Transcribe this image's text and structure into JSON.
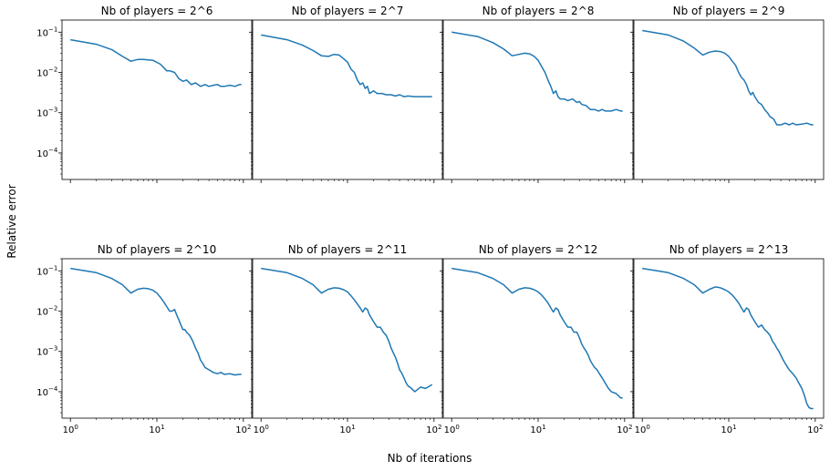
{
  "figure": {
    "ylabel": "Relative error",
    "xlabel": "Nb of iterations"
  },
  "chart_data": [
    {
      "type": "line",
      "title": "Nb of players = 2^6",
      "xscale": "log",
      "yscale": "log",
      "xlim": [
        0.8,
        125
      ],
      "ylim": [
        2.2e-05,
        0.2
      ],
      "xticks": [
        {
          "value": 1,
          "label": "10",
          "exp": "0"
        },
        {
          "value": 10,
          "label": "10",
          "exp": "1"
        },
        {
          "value": 100,
          "label": "10",
          "exp": "2"
        }
      ],
      "yticks": [
        {
          "value": 0.1,
          "label": "10",
          "exp": "−1"
        },
        {
          "value": 0.01,
          "label": "10",
          "exp": "−2"
        },
        {
          "value": 0.001,
          "label": "10",
          "exp": "−3"
        },
        {
          "value": 0.0001,
          "label": "10",
          "exp": "−4"
        }
      ],
      "series": [
        {
          "name": "relative error",
          "color": "#1f77b4",
          "x": [
            1,
            2,
            3,
            4,
            5,
            6,
            7,
            9,
            11,
            13,
            14,
            16,
            18,
            20,
            22,
            25,
            28,
            32,
            36,
            40,
            45,
            50,
            55,
            60,
            70,
            80,
            90,
            95
          ],
          "y": [
            0.065,
            0.05,
            0.037,
            0.025,
            0.019,
            0.021,
            0.021,
            0.02,
            0.016,
            0.011,
            0.011,
            0.01,
            0.007,
            0.006,
            0.0065,
            0.005,
            0.0055,
            0.0045,
            0.005,
            0.0045,
            0.0048,
            0.005,
            0.0045,
            0.0045,
            0.0048,
            0.0045,
            0.005,
            0.005
          ]
        }
      ]
    },
    {
      "type": "line",
      "title": "Nb of players = 2^7",
      "xscale": "log",
      "yscale": "log",
      "xlim": [
        0.8,
        125
      ],
      "ylim": [
        2.2e-05,
        0.2
      ],
      "xticks": [
        {
          "value": 1,
          "label": "10",
          "exp": "0"
        },
        {
          "value": 10,
          "label": "10",
          "exp": "1"
        },
        {
          "value": 100,
          "label": "10",
          "exp": "2"
        }
      ],
      "yticks": [
        {
          "value": 0.1,
          "label": "10",
          "exp": "−1"
        },
        {
          "value": 0.01,
          "label": "10",
          "exp": "−2"
        },
        {
          "value": 0.001,
          "label": "10",
          "exp": "−3"
        },
        {
          "value": 0.0001,
          "label": "10",
          "exp": "−4"
        }
      ],
      "series": [
        {
          "name": "relative error",
          "color": "#1f77b4",
          "x": [
            1,
            2,
            3,
            4,
            5,
            6,
            7,
            8,
            9,
            10,
            11,
            12,
            13,
            14,
            15,
            16,
            17,
            18,
            20,
            22,
            25,
            28,
            32,
            36,
            40,
            45,
            50,
            60,
            70,
            80,
            95
          ],
          "y": [
            0.085,
            0.065,
            0.048,
            0.035,
            0.026,
            0.025,
            0.028,
            0.027,
            0.022,
            0.018,
            0.012,
            0.01,
            0.0065,
            0.005,
            0.0055,
            0.004,
            0.0045,
            0.003,
            0.0035,
            0.003,
            0.003,
            0.0028,
            0.0028,
            0.0026,
            0.0028,
            0.0025,
            0.0026,
            0.0025,
            0.0025,
            0.0025,
            0.0025
          ]
        }
      ]
    },
    {
      "type": "line",
      "title": "Nb of players = 2^8",
      "xscale": "log",
      "yscale": "log",
      "xlim": [
        0.8,
        125
      ],
      "ylim": [
        2.2e-05,
        0.2
      ],
      "xticks": [
        {
          "value": 1,
          "label": "10",
          "exp": "0"
        },
        {
          "value": 10,
          "label": "10",
          "exp": "1"
        },
        {
          "value": 100,
          "label": "10",
          "exp": "2"
        }
      ],
      "yticks": [
        {
          "value": 0.1,
          "label": "10",
          "exp": "−1"
        },
        {
          "value": 0.01,
          "label": "10",
          "exp": "−2"
        },
        {
          "value": 0.001,
          "label": "10",
          "exp": "−3"
        },
        {
          "value": 0.0001,
          "label": "10",
          "exp": "−4"
        }
      ],
      "series": [
        {
          "name": "relative error",
          "color": "#1f77b4",
          "x": [
            1,
            2,
            3,
            4,
            5,
            6,
            7,
            8,
            9,
            10,
            11,
            12,
            13,
            14,
            15,
            16,
            17,
            18,
            20,
            22,
            25,
            28,
            30,
            32,
            36,
            40,
            45,
            50,
            55,
            60,
            70,
            80,
            90,
            95
          ],
          "y": [
            0.1,
            0.078,
            0.055,
            0.038,
            0.026,
            0.028,
            0.03,
            0.029,
            0.025,
            0.02,
            0.014,
            0.01,
            0.0065,
            0.0045,
            0.003,
            0.0035,
            0.0025,
            0.0022,
            0.0022,
            0.002,
            0.0022,
            0.0018,
            0.0019,
            0.0016,
            0.0015,
            0.0012,
            0.0012,
            0.0011,
            0.0012,
            0.0011,
            0.0011,
            0.0012,
            0.0011,
            0.0011
          ]
        }
      ]
    },
    {
      "type": "line",
      "title": "Nb of players = 2^9",
      "xscale": "log",
      "yscale": "log",
      "xlim": [
        0.8,
        125
      ],
      "ylim": [
        2.2e-05,
        0.2
      ],
      "xticks": [
        {
          "value": 1,
          "label": "10",
          "exp": "0"
        },
        {
          "value": 10,
          "label": "10",
          "exp": "1"
        },
        {
          "value": 100,
          "label": "10",
          "exp": "2"
        }
      ],
      "yticks": [
        {
          "value": 0.1,
          "label": "10",
          "exp": "−1"
        },
        {
          "value": 0.01,
          "label": "10",
          "exp": "−2"
        },
        {
          "value": 0.001,
          "label": "10",
          "exp": "−3"
        },
        {
          "value": 0.0001,
          "label": "10",
          "exp": "−4"
        }
      ],
      "series": [
        {
          "name": "relative error",
          "color": "#1f77b4",
          "x": [
            1,
            2,
            3,
            4,
            5,
            6,
            7,
            8,
            9,
            10,
            11,
            12,
            13,
            14,
            15,
            16,
            17,
            18,
            19,
            20,
            22,
            24,
            26,
            28,
            30,
            33,
            36,
            40,
            45,
            50,
            55,
            60,
            70,
            80,
            90,
            95
          ],
          "y": [
            0.11,
            0.085,
            0.06,
            0.04,
            0.027,
            0.032,
            0.034,
            0.033,
            0.03,
            0.025,
            0.019,
            0.015,
            0.01,
            0.0075,
            0.0065,
            0.005,
            0.0035,
            0.0028,
            0.0032,
            0.0025,
            0.0018,
            0.0016,
            0.0012,
            0.001,
            0.0008,
            0.0007,
            0.0005,
            0.0005,
            0.00055,
            0.0005,
            0.00055,
            0.0005,
            0.00052,
            0.00055,
            0.0005,
            0.0005
          ]
        }
      ]
    },
    {
      "type": "line",
      "title": "Nb of players = 2^10",
      "xscale": "log",
      "yscale": "log",
      "xlim": [
        0.8,
        125
      ],
      "ylim": [
        2.2e-05,
        0.2
      ],
      "xticks": [
        {
          "value": 1,
          "label": "10",
          "exp": "0"
        },
        {
          "value": 10,
          "label": "10",
          "exp": "1"
        },
        {
          "value": 100,
          "label": "10",
          "exp": "2"
        }
      ],
      "yticks": [
        {
          "value": 0.1,
          "label": "10",
          "exp": "−1"
        },
        {
          "value": 0.01,
          "label": "10",
          "exp": "−2"
        },
        {
          "value": 0.001,
          "label": "10",
          "exp": "−3"
        },
        {
          "value": 0.0001,
          "label": "10",
          "exp": "−4"
        }
      ],
      "series": [
        {
          "name": "relative error",
          "color": "#1f77b4",
          "x": [
            1,
            2,
            3,
            4,
            5,
            6,
            7,
            8,
            9,
            10,
            11,
            12,
            13,
            14,
            15,
            16,
            17,
            18,
            19,
            20,
            21,
            22,
            24,
            26,
            28,
            30,
            32,
            34,
            36,
            40,
            45,
            50,
            55,
            60,
            70,
            80,
            90,
            95
          ],
          "y": [
            0.115,
            0.09,
            0.065,
            0.045,
            0.028,
            0.035,
            0.037,
            0.036,
            0.033,
            0.028,
            0.022,
            0.017,
            0.013,
            0.01,
            0.01,
            0.011,
            0.008,
            0.006,
            0.0045,
            0.0035,
            0.0035,
            0.003,
            0.0025,
            0.0018,
            0.0012,
            0.0009,
            0.0006,
            0.0005,
            0.0004,
            0.00035,
            0.0003,
            0.00028,
            0.0003,
            0.00027,
            0.00028,
            0.00026,
            0.00027,
            0.00027
          ]
        }
      ]
    },
    {
      "type": "line",
      "title": "Nb of players = 2^11",
      "xscale": "log",
      "yscale": "log",
      "xlim": [
        0.8,
        125
      ],
      "ylim": [
        2.2e-05,
        0.2
      ],
      "xticks": [
        {
          "value": 1,
          "label": "10",
          "exp": "0"
        },
        {
          "value": 10,
          "label": "10",
          "exp": "1"
        },
        {
          "value": 100,
          "label": "10",
          "exp": "2"
        }
      ],
      "yticks": [
        {
          "value": 0.1,
          "label": "10",
          "exp": "−1"
        },
        {
          "value": 0.01,
          "label": "10",
          "exp": "−2"
        },
        {
          "value": 0.001,
          "label": "10",
          "exp": "−3"
        },
        {
          "value": 0.0001,
          "label": "10",
          "exp": "−4"
        }
      ],
      "series": [
        {
          "name": "relative error",
          "color": "#1f77b4",
          "x": [
            1,
            2,
            3,
            4,
            5,
            6,
            7,
            8,
            9,
            10,
            11,
            12,
            13,
            14,
            15,
            16,
            17,
            18,
            20,
            22,
            24,
            26,
            28,
            30,
            32,
            34,
            36,
            38,
            40,
            42,
            45,
            48,
            50,
            55,
            60,
            70,
            80,
            90,
            95
          ],
          "y": [
            0.115,
            0.09,
            0.065,
            0.045,
            0.028,
            0.035,
            0.038,
            0.037,
            0.034,
            0.03,
            0.024,
            0.019,
            0.015,
            0.012,
            0.0095,
            0.012,
            0.011,
            0.008,
            0.0055,
            0.004,
            0.004,
            0.003,
            0.0025,
            0.0018,
            0.0012,
            0.0009,
            0.0007,
            0.0005,
            0.00035,
            0.0003,
            0.00022,
            0.00016,
            0.00014,
            0.00012,
            0.0001,
            0.00013,
            0.00012,
            0.00014,
            0.00015
          ]
        }
      ]
    },
    {
      "type": "line",
      "title": "Nb of players = 2^12",
      "xscale": "log",
      "yscale": "log",
      "xlim": [
        0.8,
        125
      ],
      "ylim": [
        2.2e-05,
        0.2
      ],
      "xticks": [
        {
          "value": 1,
          "label": "10",
          "exp": "0"
        },
        {
          "value": 10,
          "label": "10",
          "exp": "1"
        },
        {
          "value": 100,
          "label": "10",
          "exp": "2"
        }
      ],
      "yticks": [
        {
          "value": 0.1,
          "label": "10",
          "exp": "−1"
        },
        {
          "value": 0.01,
          "label": "10",
          "exp": "−2"
        },
        {
          "value": 0.001,
          "label": "10",
          "exp": "−3"
        },
        {
          "value": 0.0001,
          "label": "10",
          "exp": "−4"
        }
      ],
      "series": [
        {
          "name": "relative error",
          "color": "#1f77b4",
          "x": [
            1,
            2,
            3,
            4,
            5,
            6,
            7,
            8,
            9,
            10,
            11,
            12,
            13,
            14,
            15,
            16,
            17,
            18,
            20,
            22,
            24,
            26,
            28,
            30,
            32,
            34,
            36,
            38,
            40,
            42,
            45,
            48,
            50,
            55,
            60,
            65,
            70,
            80,
            90,
            95
          ],
          "y": [
            0.115,
            0.09,
            0.065,
            0.045,
            0.028,
            0.035,
            0.038,
            0.037,
            0.034,
            0.03,
            0.025,
            0.02,
            0.016,
            0.012,
            0.0095,
            0.012,
            0.011,
            0.008,
            0.0055,
            0.004,
            0.004,
            0.003,
            0.003,
            0.0022,
            0.0015,
            0.0012,
            0.001,
            0.0008,
            0.0006,
            0.0005,
            0.0004,
            0.00035,
            0.0003,
            0.00022,
            0.00016,
            0.00012,
            0.0001,
            9e-05,
            7e-05,
            7e-05
          ]
        }
      ]
    },
    {
      "type": "line",
      "title": "Nb of players = 2^13",
      "xscale": "log",
      "yscale": "log",
      "xlim": [
        0.8,
        125
      ],
      "ylim": [
        2.2e-05,
        0.2
      ],
      "xticks": [
        {
          "value": 1,
          "label": "10",
          "exp": "0"
        },
        {
          "value": 10,
          "label": "10",
          "exp": "1"
        },
        {
          "value": 100,
          "label": "10",
          "exp": "2"
        }
      ],
      "yticks": [
        {
          "value": 0.1,
          "label": "10",
          "exp": "−1"
        },
        {
          "value": 0.01,
          "label": "10",
          "exp": "−2"
        },
        {
          "value": 0.001,
          "label": "10",
          "exp": "−3"
        },
        {
          "value": 0.0001,
          "label": "10",
          "exp": "−4"
        }
      ],
      "series": [
        {
          "name": "relative error",
          "color": "#1f77b4",
          "x": [
            1,
            2,
            3,
            4,
            5,
            6,
            7,
            8,
            9,
            10,
            11,
            12,
            13,
            14,
            15,
            16,
            17,
            18,
            20,
            22,
            24,
            26,
            28,
            30,
            32,
            34,
            36,
            38,
            40,
            42,
            45,
            48,
            50,
            55,
            60,
            65,
            70,
            75,
            80,
            85,
            90,
            95
          ],
          "y": [
            0.115,
            0.09,
            0.065,
            0.045,
            0.028,
            0.035,
            0.04,
            0.038,
            0.034,
            0.03,
            0.025,
            0.02,
            0.016,
            0.012,
            0.0095,
            0.012,
            0.011,
            0.008,
            0.0055,
            0.004,
            0.0045,
            0.0035,
            0.003,
            0.0025,
            0.0018,
            0.0015,
            0.0012,
            0.001,
            0.0008,
            0.00065,
            0.0005,
            0.0004,
            0.00035,
            0.00028,
            0.00022,
            0.00016,
            0.00012,
            8e-05,
            5e-05,
            4e-05,
            3.8e-05,
            3.8e-05
          ]
        }
      ]
    }
  ]
}
